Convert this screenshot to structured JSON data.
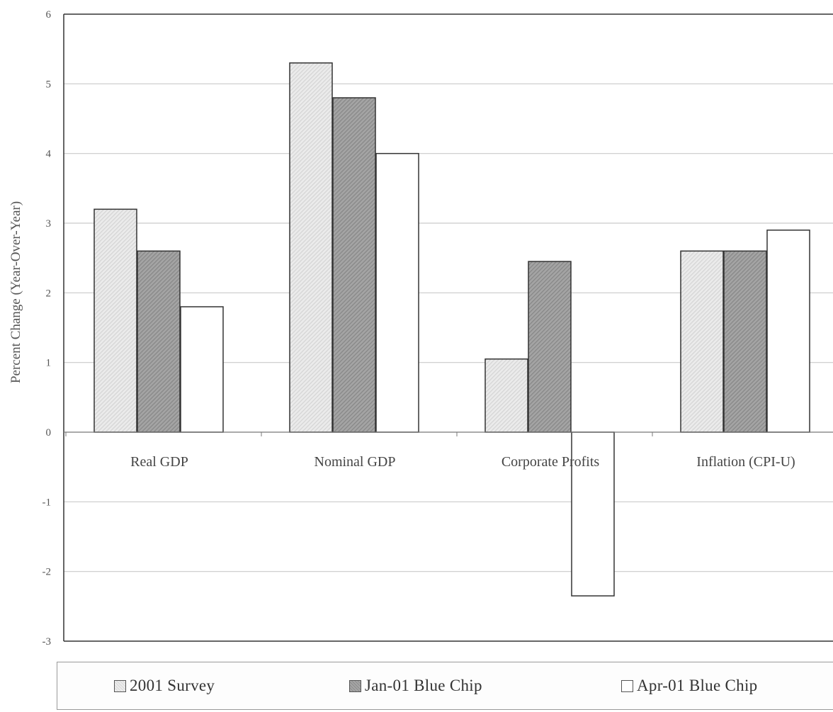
{
  "chart_data": {
    "type": "bar",
    "title": "",
    "ylabel": "Percent Change (Year-Over-Year)",
    "xlabel": "",
    "ylim": [
      -3,
      6
    ],
    "yticks": [
      6,
      5,
      4,
      3,
      2,
      1,
      0,
      -1,
      -2,
      -3
    ],
    "grid": true,
    "legend_position": "bottom",
    "categories": [
      "Real GDP",
      "Nominal GDP",
      "Corporate Profits",
      "Inflation (CPI-U)"
    ],
    "series": [
      {
        "name": "2001 Survey",
        "values": [
          3.2,
          5.3,
          1.05,
          2.6
        ],
        "color": "#e3e3e3"
      },
      {
        "name": "Jan-01 Blue Chip",
        "values": [
          2.6,
          4.8,
          2.45,
          2.6
        ],
        "color": "#9a9a9a"
      },
      {
        "name": "Apr-01 Blue Chip",
        "values": [
          1.8,
          4.0,
          -2.35,
          2.9
        ],
        "color": "#ffffff"
      }
    ]
  }
}
